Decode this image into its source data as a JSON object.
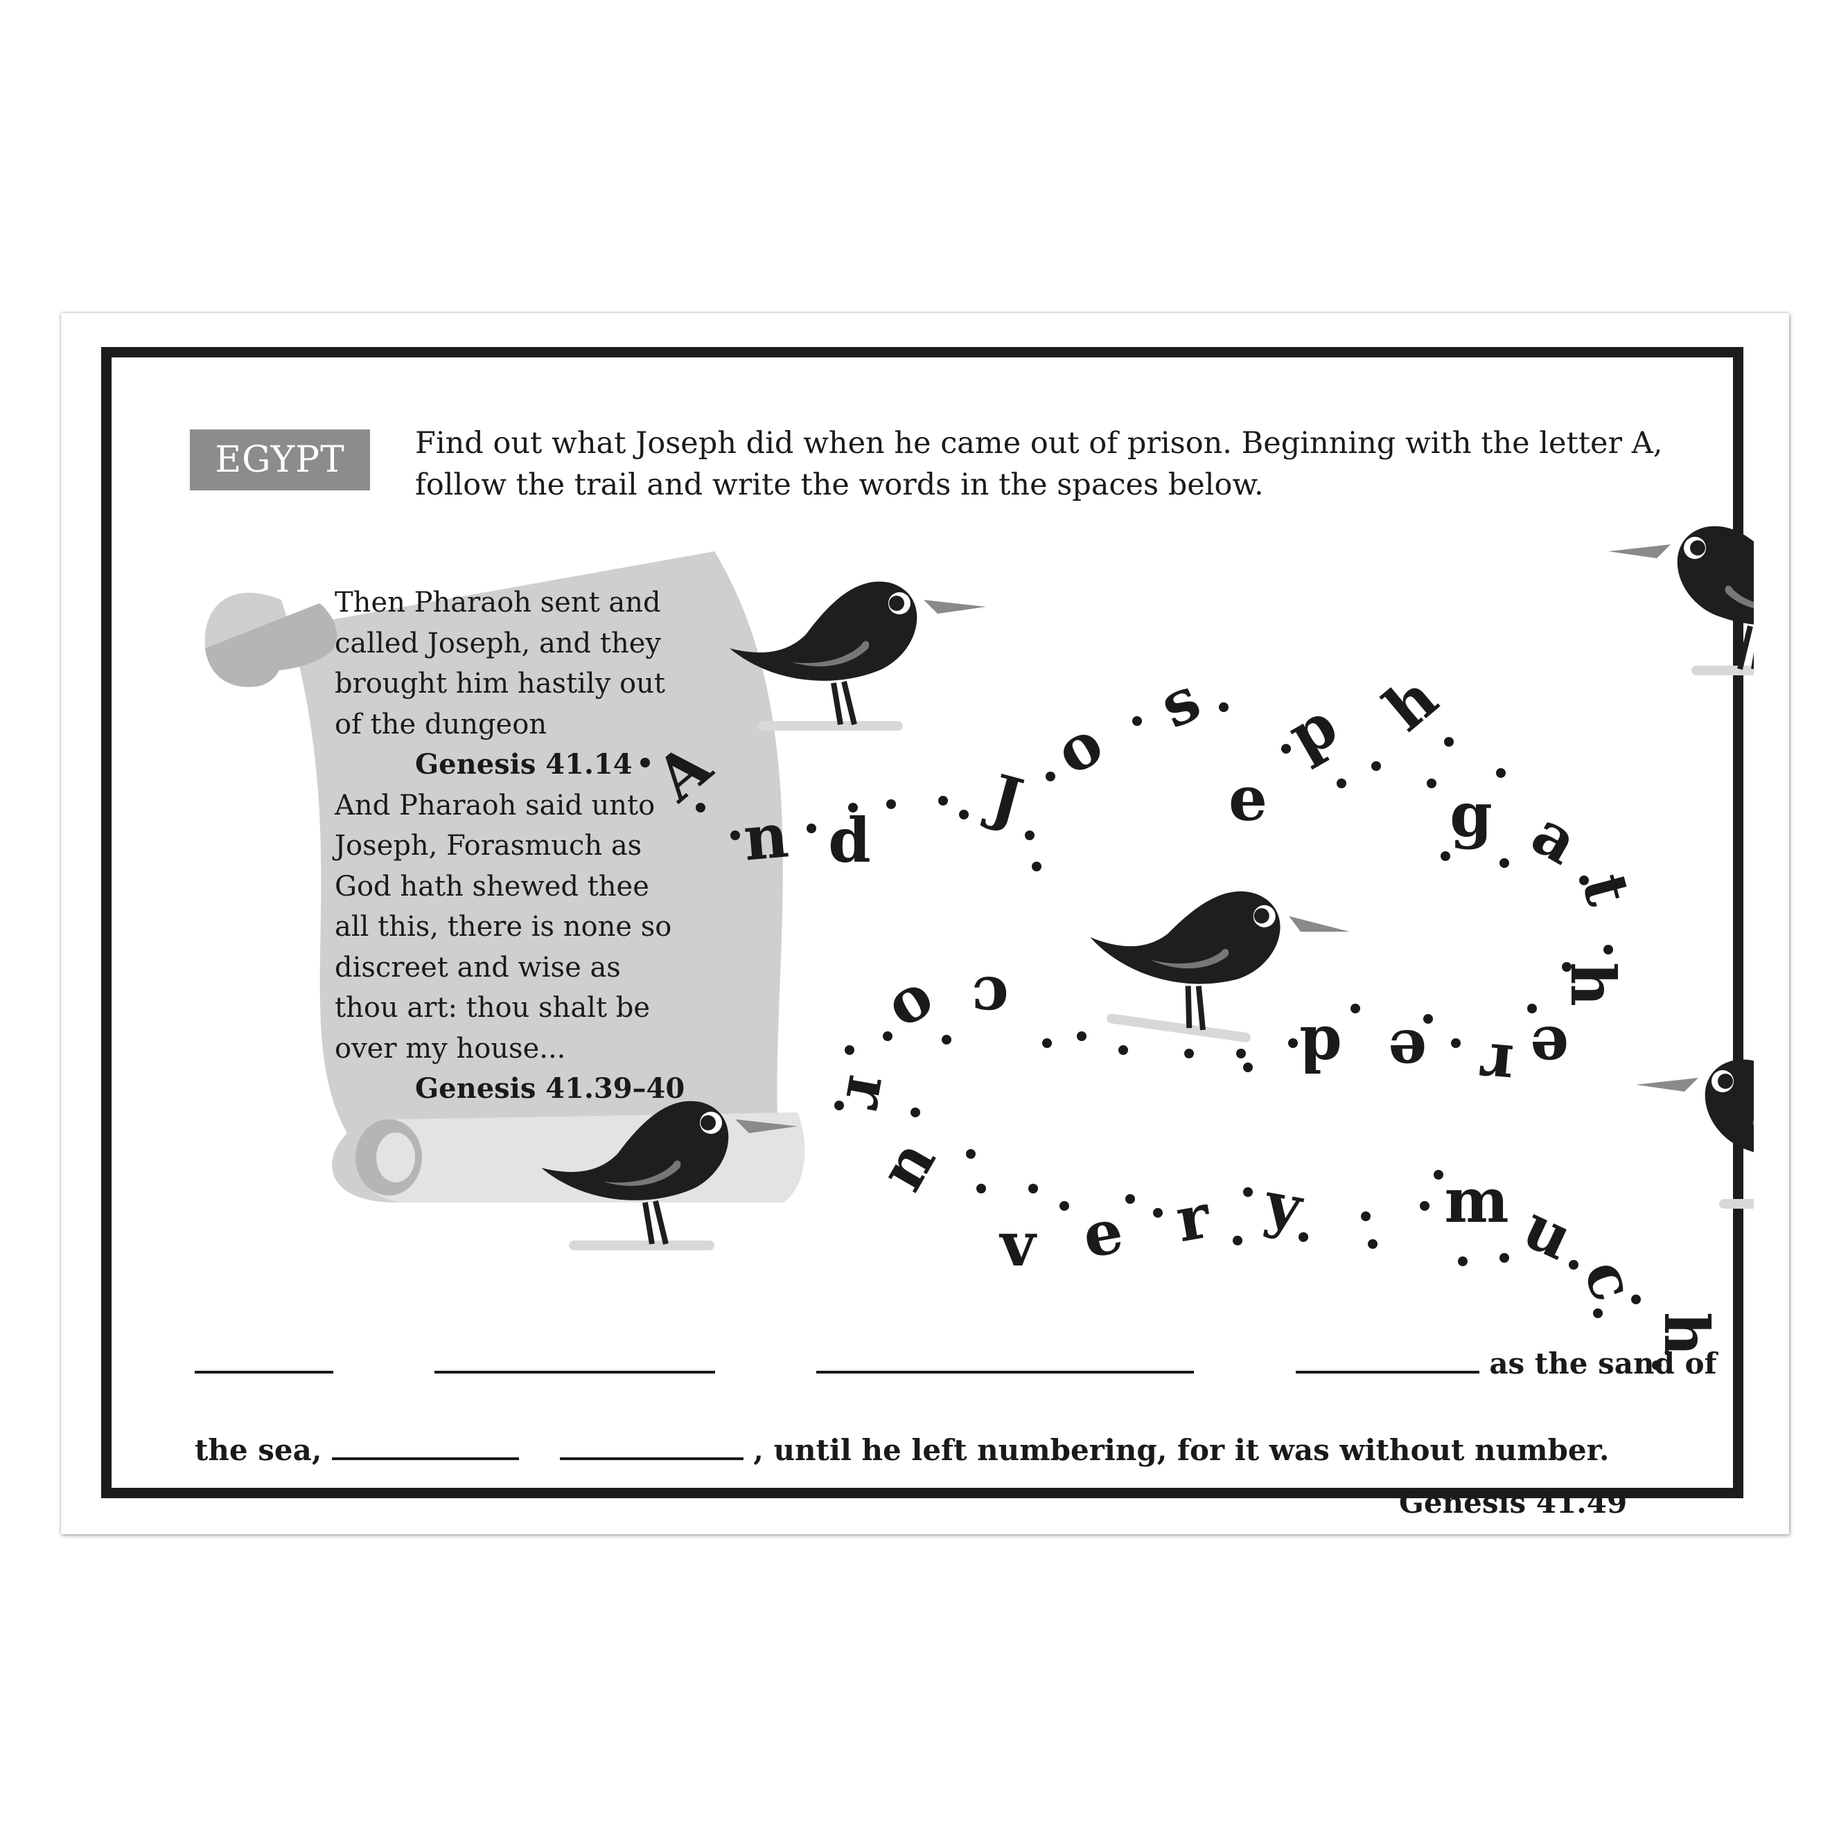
{
  "badge": "EGYPT",
  "instructions": "Find out what Joseph did when he came out of prison.  Beginning with the letter A, follow the trail and write the words in the spaces below.",
  "scroll": {
    "lines": [
      "Then Pharaoh sent and",
      "called Joseph, and they",
      "brought him hastily out",
      "of the dungeon"
    ],
    "ref1": "Genesis 41.14",
    "lines2": [
      "And Pharaoh said unto",
      "Joseph, Forasmuch as",
      "God hath shewed thee",
      "all this, there is none so",
      "discreet and wise as",
      "thou art: thou shalt be",
      "over my house..."
    ],
    "ref2": "Genesis 41.39–40"
  },
  "trail_letters": [
    "A",
    "n",
    "d",
    "J",
    "o",
    "s",
    "e",
    "p",
    "h",
    "g",
    "a",
    "t",
    "h",
    "e",
    "r",
    "e",
    "d",
    "c",
    "o",
    "r",
    "n",
    "v",
    "e",
    "r",
    "y",
    "m",
    "u",
    "c",
    "h"
  ],
  "answer": {
    "text1": "as the sand of",
    "text2_start": "the sea,",
    "text2_end": ", until he left numbering, for it was without number.",
    "reference": "Genesis 41.49"
  },
  "colors": {
    "frame": "#1c1c1c",
    "badge": "#8c8c8c",
    "scroll": "#cfcfcf",
    "bird": "#1e1e1e"
  },
  "icons": [
    "scroll-icon",
    "crow-icon"
  ]
}
